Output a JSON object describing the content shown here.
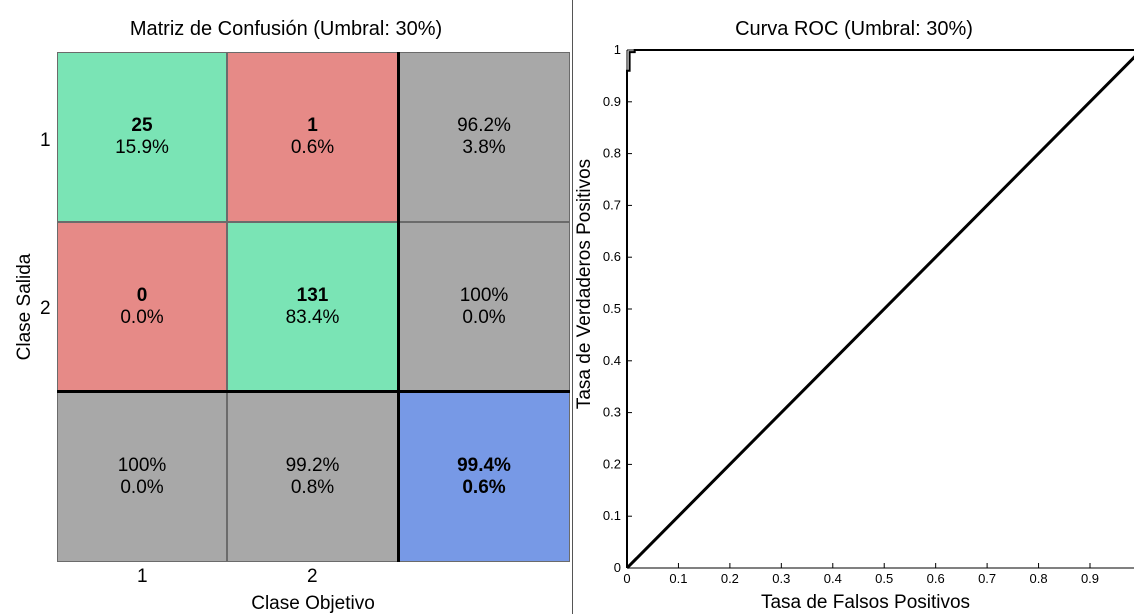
{
  "chart_data": [
    {
      "type": "heatmap",
      "title": "Matriz de Confusión (Umbral: 30%)",
      "xlabel": "Clase Objetivo",
      "ylabel": "Clase Salida",
      "row_labels": [
        "1",
        "2"
      ],
      "col_labels": [
        "1",
        "2"
      ],
      "cells": [
        [
          {
            "kind": "correct",
            "count": "25",
            "pct": "15.9%"
          },
          {
            "kind": "error",
            "count": "1",
            "pct": "0.6%"
          },
          {
            "kind": "summary",
            "l1": "96.2%",
            "l2": "3.8%"
          }
        ],
        [
          {
            "kind": "error",
            "count": "0",
            "pct": "0.0%"
          },
          {
            "kind": "correct",
            "count": "131",
            "pct": "83.4%"
          },
          {
            "kind": "summary",
            "l1": "100%",
            "l2": "0.0%"
          }
        ],
        [
          {
            "kind": "summary",
            "l1": "100%",
            "l2": "0.0%"
          },
          {
            "kind": "summary",
            "l1": "99.2%",
            "l2": "0.8%"
          },
          {
            "kind": "total",
            "l1": "99.4%",
            "l2": "0.6%"
          }
        ]
      ],
      "colors": {
        "correct": "#7ae4b5",
        "error": "#e68a87",
        "summary": "#a8a8a8",
        "total": "#7799e6"
      }
    },
    {
      "type": "line",
      "title": "Curva ROC (Umbral: 30%)",
      "xlabel": "Tasa de Falsos Positivos",
      "ylabel": "Tasa de Verdaderos Positivos",
      "xlim": [
        0,
        1
      ],
      "ylim": [
        0,
        1
      ],
      "x_ticks": [
        "0",
        "0.1",
        "0.2",
        "0.3",
        "0.4",
        "0.5",
        "0.6",
        "0.7",
        "0.8",
        "0.9"
      ],
      "y_ticks": [
        "0",
        "0.1",
        "0.2",
        "0.3",
        "0.4",
        "0.5",
        "0.6",
        "0.7",
        "0.8",
        "0.9",
        "1"
      ],
      "series": [
        {
          "x": [
            0,
            0,
            0.005,
            0.005,
            0.015,
            0.015,
            1
          ],
          "y": [
            0,
            0.96,
            0.96,
            0.996,
            0.996,
            1,
            1
          ]
        },
        {
          "x": [
            0,
            1
          ],
          "y": [
            0,
            1
          ]
        }
      ],
      "line_color": "#000000"
    }
  ]
}
